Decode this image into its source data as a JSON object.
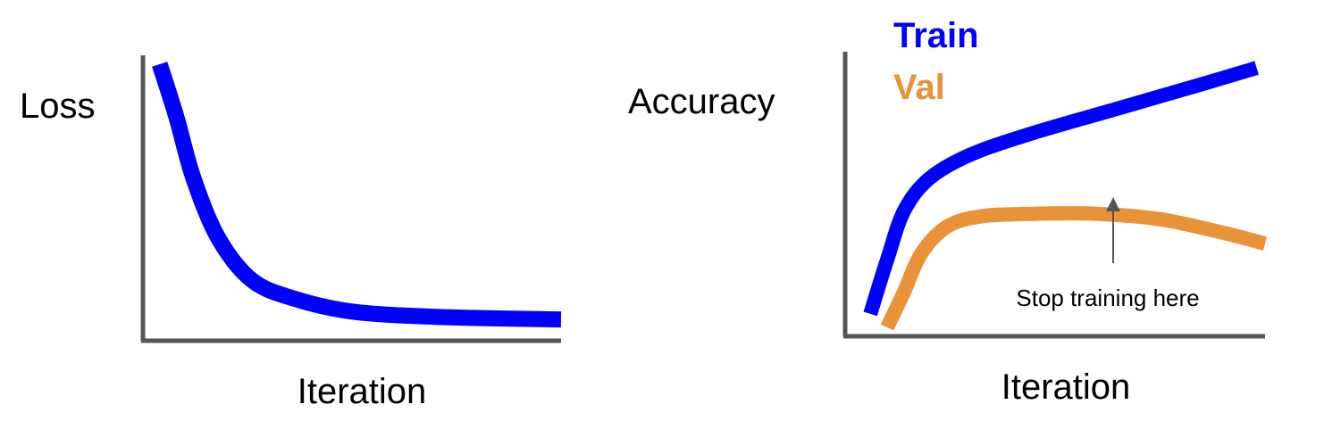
{
  "chart_data": [
    {
      "type": "line",
      "ylabel": "Loss",
      "xlabel": "Iteration",
      "grid": false,
      "series": [
        {
          "color": "#0000ff",
          "values": [
            [
              0.04,
              1.0
            ],
            [
              0.08,
              0.8
            ],
            [
              0.12,
              0.57
            ],
            [
              0.18,
              0.34
            ],
            [
              0.26,
              0.18
            ],
            [
              0.36,
              0.11
            ],
            [
              0.5,
              0.06
            ],
            [
              0.7,
              0.04
            ],
            [
              1.0,
              0.03
            ]
          ]
        }
      ]
    },
    {
      "type": "line",
      "ylabel": "Accuracy",
      "xlabel": "Iteration",
      "legend_position": "top-left",
      "grid": false,
      "series": [
        {
          "name": "Train",
          "color": "#0000ff",
          "values": [
            [
              0.06,
              0.05
            ],
            [
              0.1,
              0.25
            ],
            [
              0.14,
              0.43
            ],
            [
              0.2,
              0.55
            ],
            [
              0.3,
              0.64
            ],
            [
              0.45,
              0.72
            ],
            [
              0.65,
              0.81
            ],
            [
              0.85,
              0.9
            ],
            [
              0.98,
              0.96
            ]
          ]
        },
        {
          "name": "Val",
          "color": "#e8923a",
          "values": [
            [
              0.1,
              0.0
            ],
            [
              0.14,
              0.13
            ],
            [
              0.18,
              0.27
            ],
            [
              0.24,
              0.37
            ],
            [
              0.32,
              0.41
            ],
            [
              0.45,
              0.42
            ],
            [
              0.6,
              0.42
            ],
            [
              0.75,
              0.4
            ],
            [
              0.9,
              0.35
            ],
            [
              1.0,
              0.31
            ]
          ]
        }
      ],
      "annotations": [
        {
          "text": "Stop training here",
          "x": 0.6,
          "y": 0.42
        }
      ]
    }
  ]
}
